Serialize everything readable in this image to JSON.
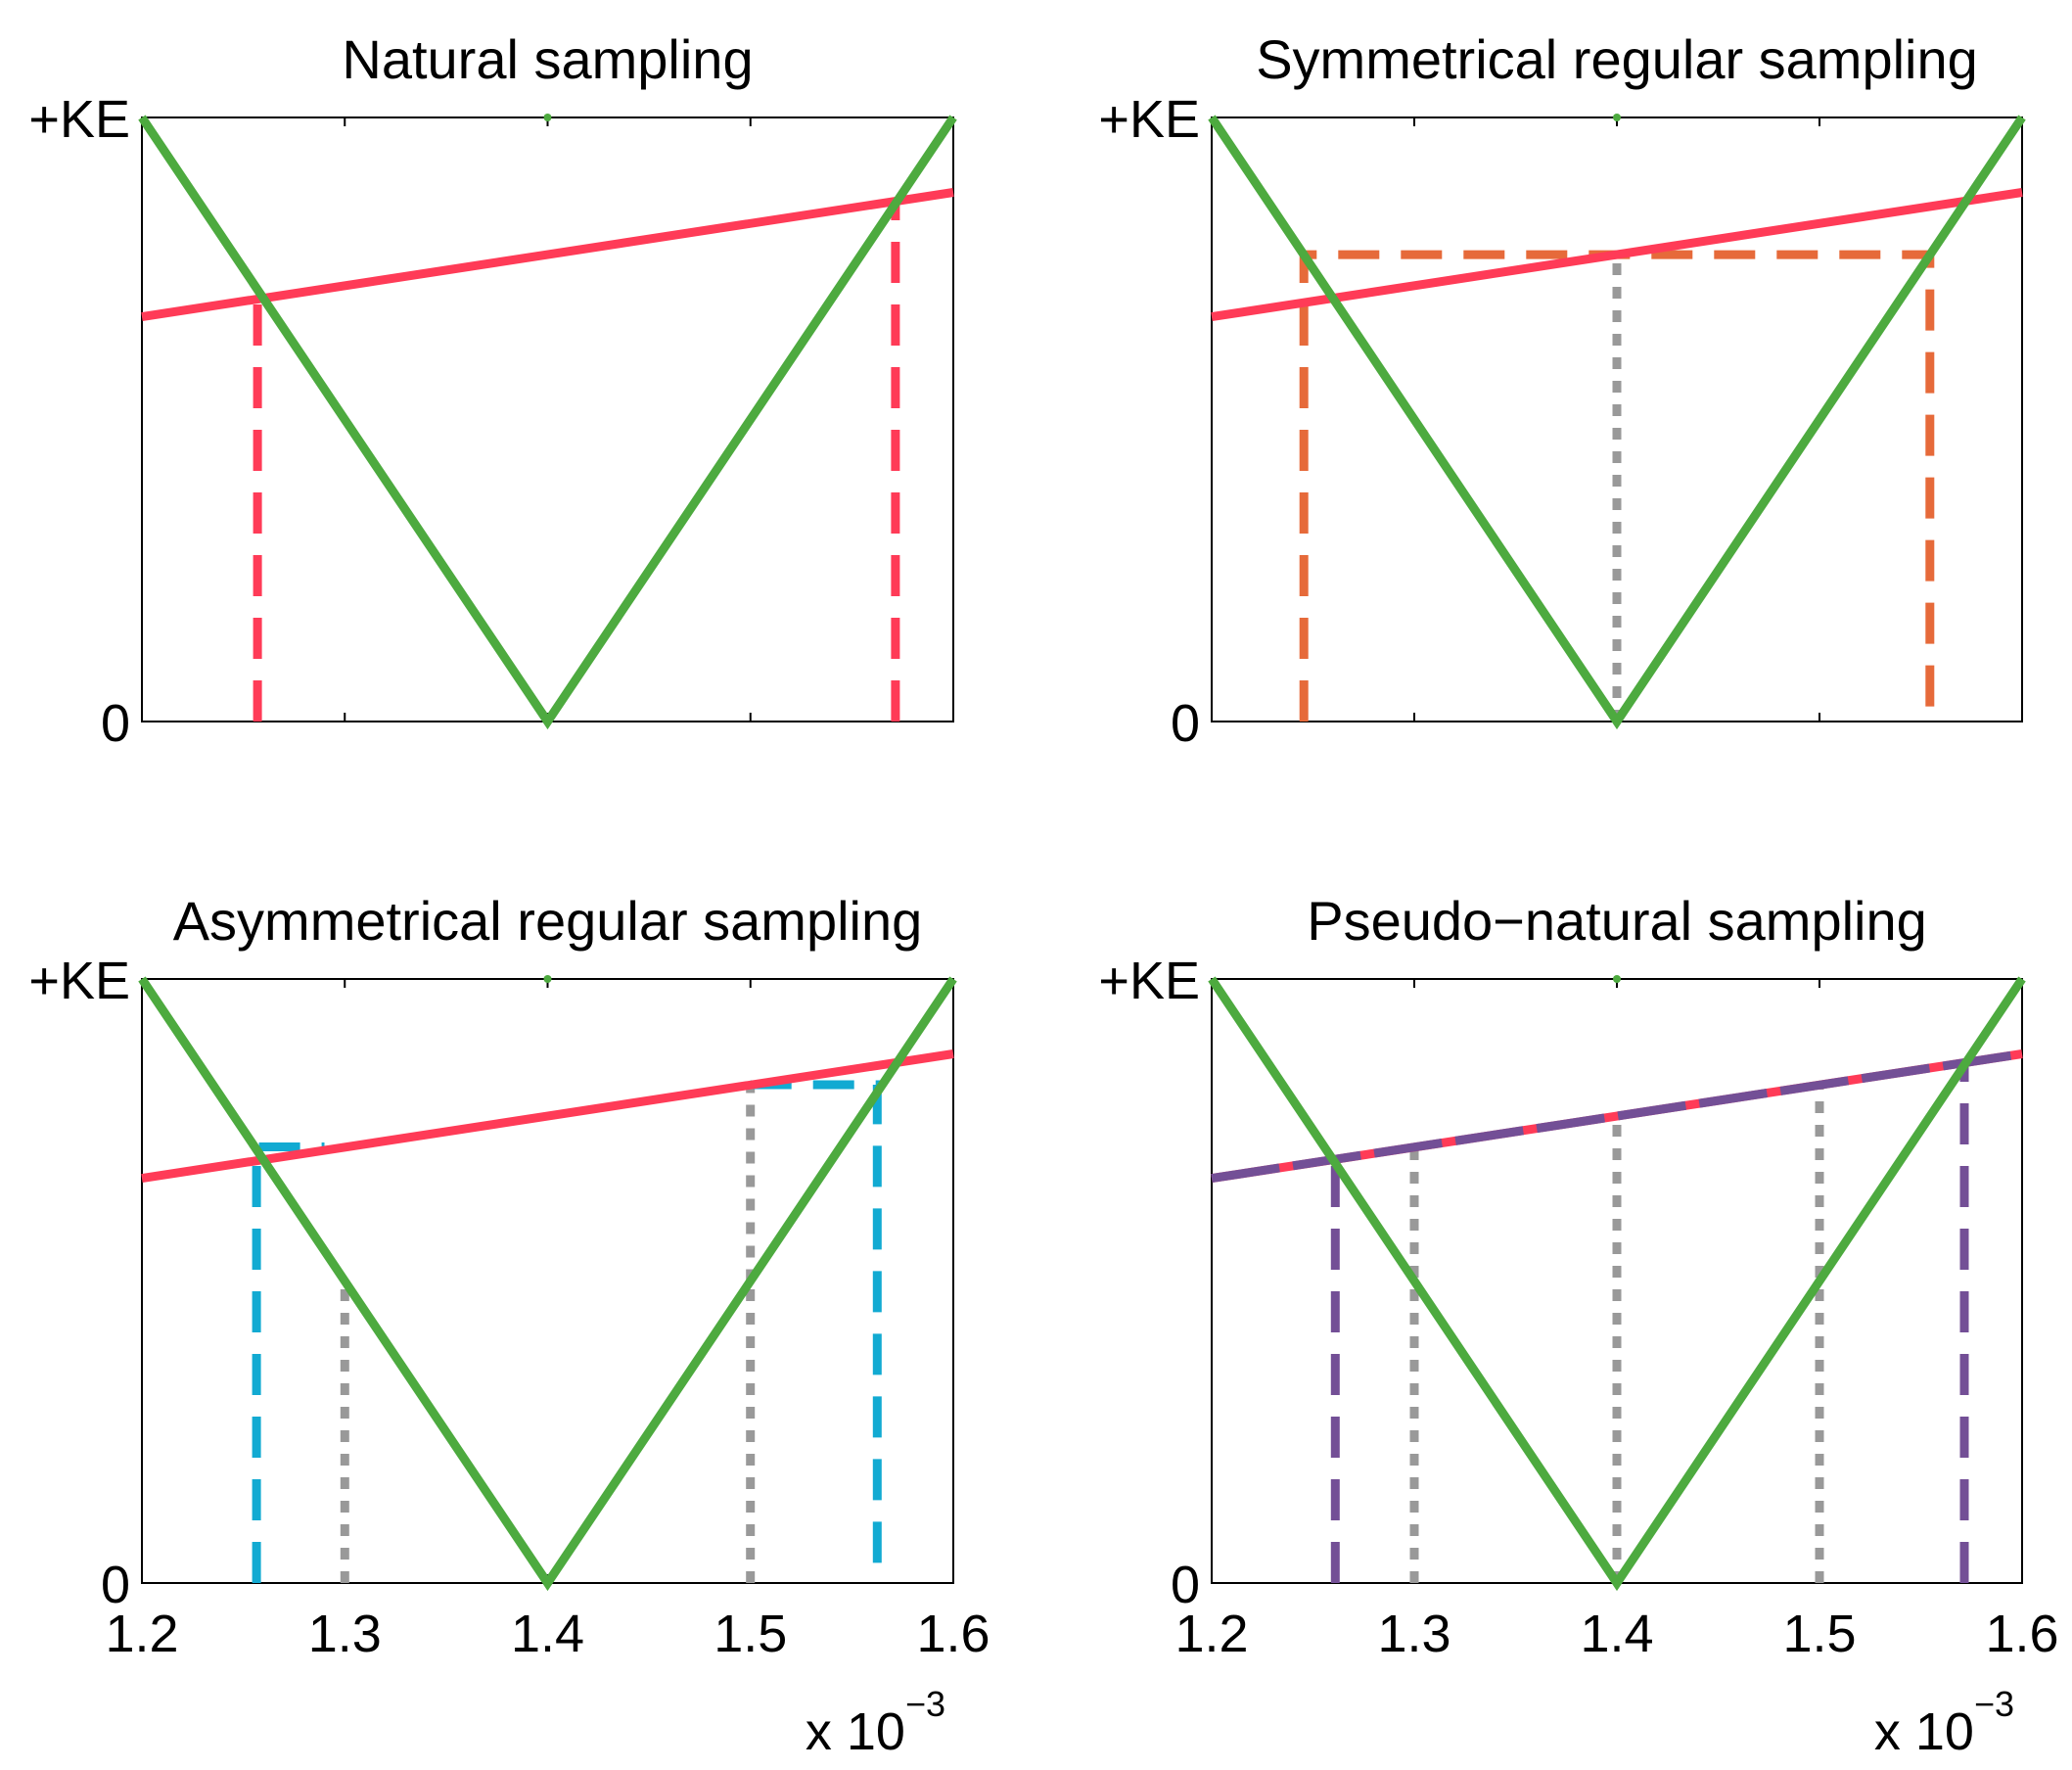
{
  "colors": {
    "carrier": "#4daa3f",
    "reference": "#ff3b57",
    "symmetrical": "#e66a3a",
    "asymmetrical": "#12aad2",
    "pseudo": "#734f96",
    "guide": "#999999"
  },
  "axis_labels": {
    "y_top": "+KE",
    "y_bottom": "0",
    "x_ticks": [
      "1.2",
      "1.3",
      "1.4",
      "1.5",
      "1.6"
    ],
    "x_scale_base": "x 10",
    "x_scale_exp": "−3"
  },
  "chart_data": [
    {
      "type": "line",
      "title": "Natural sampling",
      "xlim": [
        1.2,
        1.6
      ],
      "ylim": [
        0,
        1
      ],
      "carrier": {
        "x": [
          1.2,
          1.4,
          1.6
        ],
        "y": [
          1,
          0,
          1
        ]
      },
      "reference": {
        "x": [
          1.2,
          1.6
        ],
        "y": [
          0.67,
          0.876
        ]
      },
      "samples": [
        {
          "style": "dashed",
          "color": "reference",
          "x": [
            1.257,
            1.257
          ],
          "y": [
            0,
            0.7
          ]
        },
        {
          "style": "dashed",
          "color": "reference",
          "x": [
            1.5715,
            1.5715
          ],
          "y": [
            0,
            0.86
          ]
        }
      ]
    },
    {
      "type": "line",
      "title": "Symmetrical regular sampling",
      "xlim": [
        1.2,
        1.6
      ],
      "ylim": [
        0,
        1
      ],
      "carrier": {
        "x": [
          1.2,
          1.4,
          1.6
        ],
        "y": [
          1,
          0,
          1
        ]
      },
      "reference": {
        "x": [
          1.2,
          1.6
        ],
        "y": [
          0.67,
          0.876
        ]
      },
      "samples": [
        {
          "style": "dotted",
          "color": "guide",
          "x": [
            1.4,
            1.4
          ],
          "y": [
            0,
            0.773
          ]
        },
        {
          "style": "dashed",
          "color": "symmetrical",
          "x": [
            1.2455,
            1.2455,
            1.5545,
            1.5545
          ],
          "y": [
            0,
            0.773,
            0.773,
            0
          ]
        }
      ]
    },
    {
      "type": "line",
      "title": "Asymmetrical regular sampling",
      "xlim": [
        1.2,
        1.6
      ],
      "ylim": [
        0,
        1
      ],
      "carrier": {
        "x": [
          1.2,
          1.4,
          1.6
        ],
        "y": [
          1,
          0,
          1
        ]
      },
      "reference": {
        "x": [
          1.2,
          1.6
        ],
        "y": [
          0.67,
          0.876
        ]
      },
      "samples": [
        {
          "style": "dotted",
          "color": "guide",
          "x": [
            1.3,
            1.3
          ],
          "y": [
            0,
            0.5
          ]
        },
        {
          "style": "dotted",
          "color": "guide",
          "x": [
            1.5,
            1.5
          ],
          "y": [
            0,
            0.5
          ]
        },
        {
          "style": "dotted",
          "color": "guide",
          "x": [
            1.5,
            1.5
          ],
          "y": [
            0.5,
            0.825
          ]
        },
        {
          "style": "dashed",
          "color": "asymmetrical",
          "x": [
            1.2565,
            1.2565,
            1.29
          ],
          "y": [
            0,
            0.722,
            0.722
          ]
        },
        {
          "style": "dashed",
          "color": "asymmetrical",
          "x": [
            1.5,
            1.5625,
            1.5625
          ],
          "y": [
            0.825,
            0.825,
            0
          ]
        }
      ]
    },
    {
      "type": "line",
      "title": "Pseudo−natural sampling",
      "xlim": [
        1.2,
        1.6
      ],
      "ylim": [
        0,
        1
      ],
      "carrier": {
        "x": [
          1.2,
          1.4,
          1.6
        ],
        "y": [
          1,
          0,
          1
        ]
      },
      "reference": {
        "x": [
          1.2,
          1.6
        ],
        "y": [
          0.67,
          0.876
        ]
      },
      "pseudo_reference": {
        "x": [
          1.2,
          1.6
        ],
        "y": [
          0.67,
          0.876
        ]
      },
      "samples": [
        {
          "style": "dotted",
          "color": "guide",
          "x": [
            1.3,
            1.3
          ],
          "y": [
            0,
            0.722
          ]
        },
        {
          "style": "dotted",
          "color": "guide",
          "x": [
            1.4,
            1.4
          ],
          "y": [
            0,
            0.773
          ]
        },
        {
          "style": "dotted",
          "color": "guide",
          "x": [
            1.5,
            1.5
          ],
          "y": [
            0,
            0.825
          ]
        },
        {
          "style": "dashed",
          "color": "pseudo",
          "x": [
            1.261,
            1.261
          ],
          "y": [
            0,
            0.7
          ]
        },
        {
          "style": "dashed",
          "color": "pseudo",
          "x": [
            1.5715,
            1.5715
          ],
          "y": [
            0,
            0.86
          ]
        }
      ]
    }
  ]
}
